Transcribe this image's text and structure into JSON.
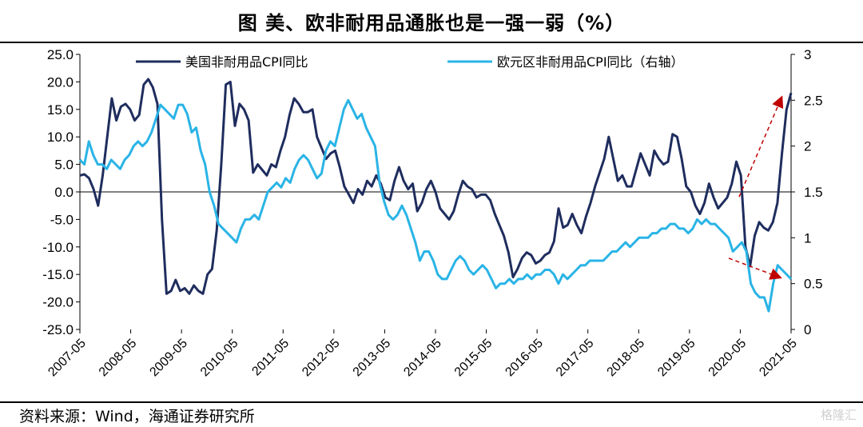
{
  "title": "图    美、欧非耐用品通胀也是一强一弱（%）",
  "source": "资料来源：Wind，海通证券研究所",
  "watermark": "格隆汇",
  "chart_data": {
    "type": "line",
    "left_axis": {
      "ylim": [
        -25,
        25
      ],
      "ticks": [
        "25.0",
        "20.0",
        "15.0",
        "10.0",
        "5.0",
        "0.0",
        "-5.0",
        "-10.0",
        "-15.0",
        "-20.0",
        "-25.0"
      ]
    },
    "right_axis": {
      "ylim": [
        0,
        3
      ],
      "ticks": [
        "3",
        "2.5",
        "2",
        "1.5",
        "1",
        "0.5",
        "0"
      ]
    },
    "x_ticks": [
      "2007-05",
      "2008-05",
      "2009-05",
      "2010-05",
      "2011-05",
      "2012-05",
      "2013-05",
      "2014-05",
      "2015-05",
      "2016-05",
      "2017-05",
      "2018-05",
      "2019-05",
      "2020-05",
      "2021-05"
    ],
    "x_start": "2007-05",
    "x_end": "2021-05",
    "series": [
      {
        "name": "美国非耐用品CPI同比",
        "axis": "left",
        "color": "#1f2d5e",
        "values": [
          3.0,
          3.2,
          2.5,
          0.5,
          -2.5,
          3.0,
          10.0,
          17.0,
          13.0,
          15.5,
          16.0,
          15.0,
          13.0,
          14.0,
          19.5,
          20.5,
          19.0,
          16.0,
          -5.0,
          -18.5,
          -18.0,
          -16.0,
          -18.0,
          -17.5,
          -18.5,
          -17.0,
          -18.0,
          -18.5,
          -15.0,
          -14.0,
          -7.0,
          5.0,
          19.5,
          20.0,
          12.0,
          16.0,
          15.0,
          13.0,
          3.5,
          5.0,
          4.0,
          3.0,
          5.0,
          4.5,
          7.5,
          10.0,
          14.0,
          17.0,
          16.0,
          14.5,
          14.5,
          15.0,
          10.0,
          8.0,
          6.0,
          7.0,
          7.5,
          4.5,
          1.0,
          -0.5,
          -2.0,
          0.5,
          -0.5,
          2.0,
          1.0,
          3.0,
          1.5,
          -1.0,
          -1.5,
          2.0,
          4.5,
          2.0,
          0.5,
          1.5,
          -3.5,
          -2.0,
          0.5,
          2.0,
          0.0,
          -3.0,
          -4.0,
          -5.0,
          -3.5,
          -0.5,
          2.0,
          1.0,
          0.5,
          -1.0,
          -0.5,
          -0.5,
          -1.5,
          -4.0,
          -6.0,
          -8.0,
          -11.0,
          -15.5,
          -14.0,
          -12.0,
          -11.0,
          -11.5,
          -13.0,
          -12.5,
          -11.5,
          -11.0,
          -9.0,
          -3.0,
          -6.5,
          -6.0,
          -4.0,
          -6.0,
          -7.5,
          -4.5,
          -2.0,
          1.0,
          3.5,
          6.0,
          10.0,
          6.0,
          2.0,
          3.0,
          1.0,
          1.0,
          4.0,
          7.0,
          5.0,
          3.0,
          7.5,
          6.0,
          5.0,
          5.5,
          10.5,
          10.0,
          6.0,
          1.0,
          0.0,
          -2.5,
          -4.0,
          -2.0,
          1.5,
          -1.0,
          -3.0,
          -2.0,
          -1.0,
          1.5,
          5.5,
          3.0,
          -10.0,
          -13.5,
          -8.0,
          -5.5,
          -6.5,
          -7.0,
          -5.5,
          -2.0,
          7.0,
          15.0,
          18.0
        ]
      },
      {
        "name": "欧元区非耐用品CPI同比（右轴）",
        "axis": "right",
        "color": "#2ab4e6",
        "values": [
          1.85,
          1.8,
          2.05,
          1.9,
          1.8,
          1.8,
          1.75,
          1.85,
          1.8,
          1.75,
          1.85,
          1.9,
          2.0,
          2.05,
          2.0,
          2.05,
          2.15,
          2.3,
          2.45,
          2.4,
          2.35,
          2.3,
          2.45,
          2.45,
          2.35,
          2.15,
          2.2,
          1.95,
          1.8,
          1.5,
          1.35,
          1.15,
          1.1,
          1.05,
          1.0,
          0.95,
          1.1,
          1.2,
          1.2,
          1.25,
          1.2,
          1.35,
          1.5,
          1.55,
          1.6,
          1.55,
          1.65,
          1.6,
          1.75,
          1.85,
          1.9,
          1.85,
          1.75,
          1.65,
          1.7,
          1.95,
          2.05,
          2.0,
          2.2,
          2.4,
          2.5,
          2.4,
          2.3,
          2.35,
          2.2,
          2.1,
          2.0,
          1.6,
          1.4,
          1.25,
          1.2,
          1.25,
          1.35,
          1.25,
          1.1,
          0.95,
          0.75,
          0.85,
          0.85,
          0.75,
          0.6,
          0.55,
          0.55,
          0.65,
          0.75,
          0.8,
          0.75,
          0.65,
          0.6,
          0.65,
          0.7,
          0.65,
          0.55,
          0.45,
          0.5,
          0.5,
          0.55,
          0.5,
          0.55,
          0.55,
          0.6,
          0.55,
          0.6,
          0.6,
          0.65,
          0.65,
          0.6,
          0.5,
          0.6,
          0.55,
          0.6,
          0.65,
          0.7,
          0.7,
          0.75,
          0.75,
          0.75,
          0.75,
          0.8,
          0.85,
          0.85,
          0.9,
          0.95,
          0.9,
          0.95,
          1.0,
          1.0,
          1.0,
          1.05,
          1.05,
          1.1,
          1.1,
          1.15,
          1.15,
          1.1,
          1.1,
          1.05,
          1.1,
          1.2,
          1.15,
          1.2,
          1.15,
          1.15,
          1.1,
          1.05,
          1.0,
          0.85,
          0.9,
          0.95,
          0.85,
          0.5,
          0.4,
          0.35,
          0.35,
          0.2,
          0.5,
          0.7,
          0.65,
          0.6,
          0.55
        ]
      }
    ],
    "annotations": [
      {
        "type": "arrow",
        "series": "美国非耐用品CPI同比",
        "direction": "up"
      },
      {
        "type": "arrow",
        "series": "欧元区非耐用品CPI同比（右轴）",
        "direction": "down"
      }
    ]
  }
}
